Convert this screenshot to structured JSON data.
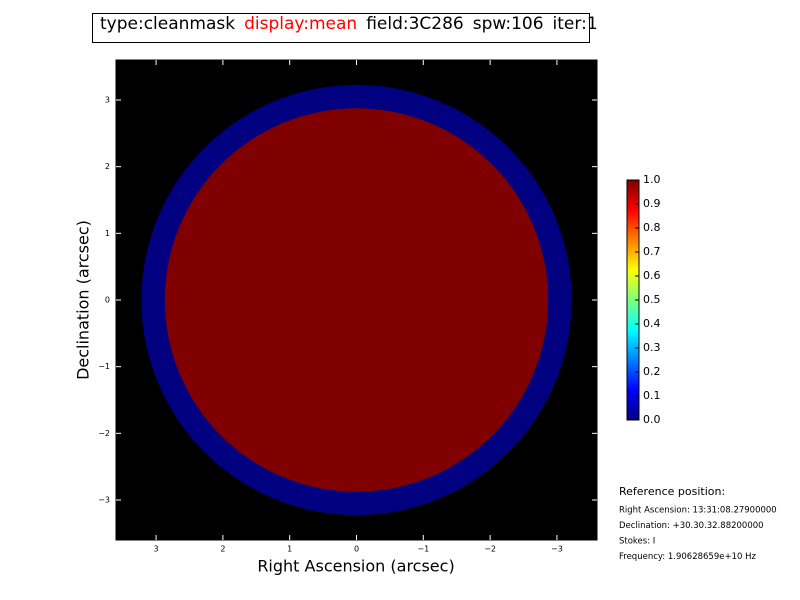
{
  "chart_data": {
    "type": "mask-image",
    "title_parts": [
      {
        "text": "type:cleanmask",
        "color": "#000000"
      },
      {
        "text": "display:mean",
        "color": "#ff0000"
      },
      {
        "text": "field:3C286",
        "color": "#000000"
      },
      {
        "text": "spw:106",
        "color": "#000000"
      },
      {
        "text": "iter:1",
        "color": "#000000"
      }
    ],
    "x_label": "Right Ascension (arcsec)",
    "y_label": "Declination (arcsec)",
    "xlim": [
      3.6,
      -3.6
    ],
    "ylim": [
      -3.6,
      3.6
    ],
    "xticks": [
      3,
      2,
      1,
      0,
      {
        "value": -1,
        "label": "−1"
      },
      {
        "value": -2,
        "label": "−2"
      },
      {
        "value": -3,
        "label": "−3"
      }
    ],
    "yticks": [
      3,
      2,
      1,
      0,
      {
        "value": -1,
        "label": "−1"
      },
      {
        "value": -2,
        "label": "−2"
      },
      {
        "value": -3,
        "label": "−3"
      }
    ],
    "background": "#000000",
    "colormap": "jet",
    "regions": [
      {
        "radius": 3.22,
        "value": 0
      },
      {
        "radius": 2.87,
        "value": 1
      }
    ],
    "colorbar_lim": [
      0,
      1
    ],
    "colorbar_ticks": [
      {
        "value": 0,
        "label": "0.0"
      },
      {
        "value": 0.1,
        "label": "0.1"
      },
      {
        "value": 0.2,
        "label": "0.2"
      },
      {
        "value": 0.3,
        "label": "0.3"
      },
      {
        "value": 0.4,
        "label": "0.4"
      },
      {
        "value": 0.5,
        "label": "0.5"
      },
      {
        "value": 0.6,
        "label": "0.6"
      },
      {
        "value": 0.7,
        "label": "0.7"
      },
      {
        "value": 0.8,
        "label": "0.8"
      },
      {
        "value": 0.9,
        "label": "0.9"
      },
      {
        "value": 1,
        "label": "1.0"
      }
    ],
    "reference": {
      "heading": "Reference position:",
      "lines": [
        "Right Ascension: 13:31:08.27900000",
        "Declination: +30.30.32.88200000",
        "Stokes: I",
        "Frequency: 1.90628659e+10 Hz"
      ]
    }
  }
}
